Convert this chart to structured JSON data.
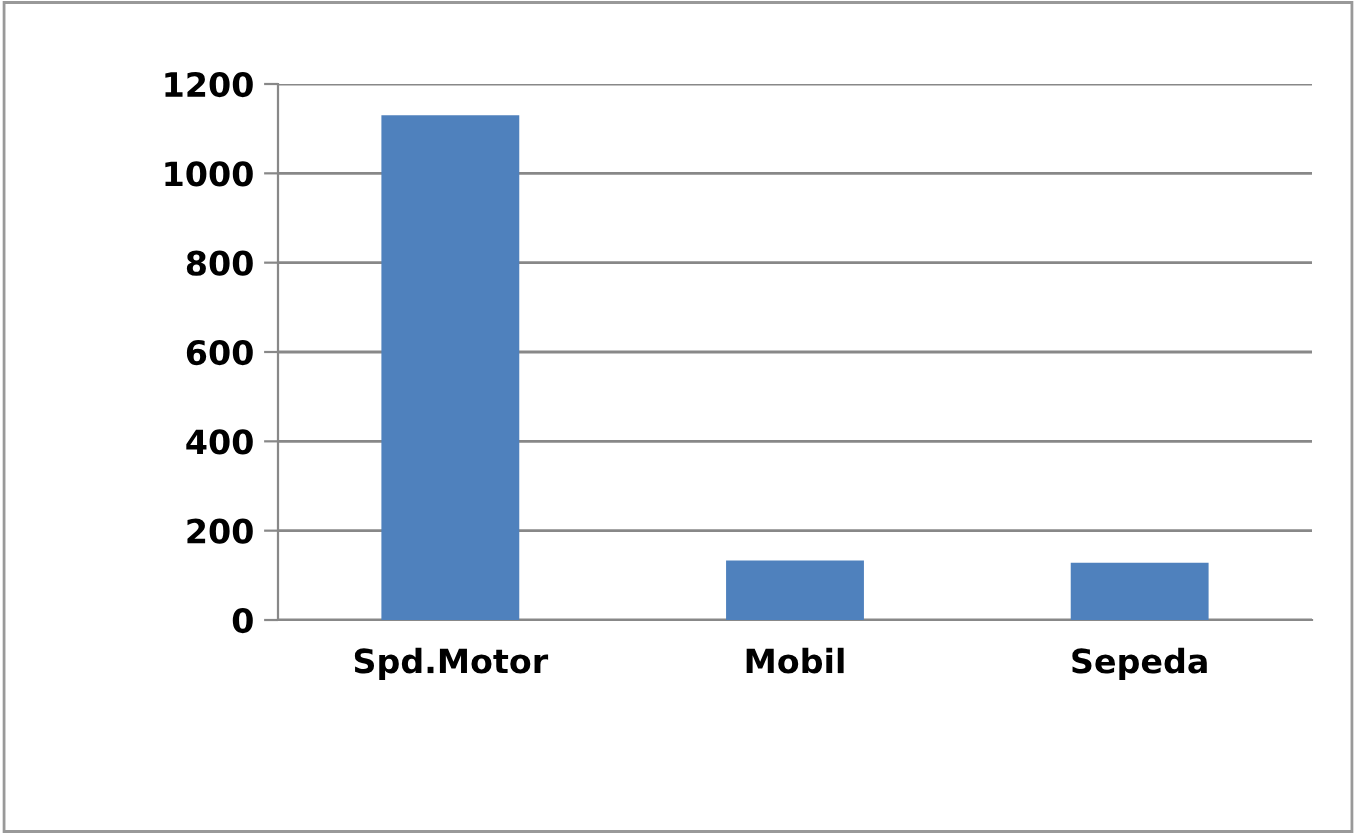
{
  "chart_data": {
    "type": "bar",
    "categories": [
      "Spd.Motor",
      "Mobil",
      "Sepeda"
    ],
    "values": [
      1130,
      133,
      128
    ],
    "color": "#4f81bd",
    "ylim": [
      0,
      1200
    ],
    "yticks": [
      0,
      200,
      400,
      600,
      800,
      1000,
      1200
    ],
    "grid": "y",
    "legend": false
  }
}
